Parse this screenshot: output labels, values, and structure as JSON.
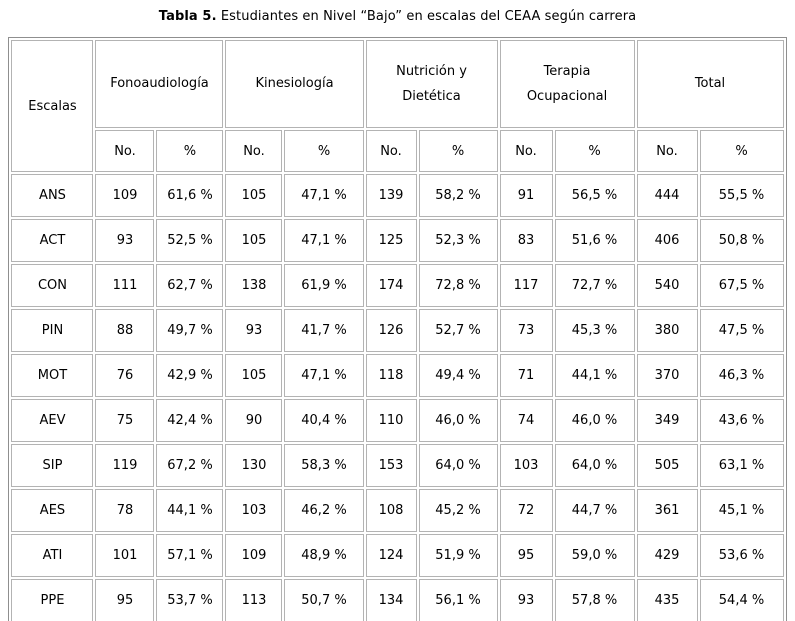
{
  "title": {
    "label": "Tabla 5.",
    "text": " Estudiantes en Nivel “Bajo” en escalas del CEAA según carrera"
  },
  "table": {
    "corner_label": "Escalas",
    "groups": [
      {
        "label": "Fonoaudiología"
      },
      {
        "label": "Kinesiología"
      },
      {
        "label": "Nutrición y Dietética"
      },
      {
        "label": "Terapia Ocupacional"
      },
      {
        "label": "Total"
      }
    ],
    "subheaders": {
      "no": "No.",
      "pct": "%"
    },
    "rows": [
      {
        "scale": "ANS",
        "values": [
          "109",
          "61,6 %",
          "105",
          "47,1 %",
          "139",
          "58,2 %",
          "91",
          "56,5 %",
          "444",
          "55,5 %"
        ]
      },
      {
        "scale": "ACT",
        "values": [
          "93",
          "52,5 %",
          "105",
          "47,1 %",
          "125",
          "52,3 %",
          "83",
          "51,6 %",
          "406",
          "50,8 %"
        ]
      },
      {
        "scale": "CON",
        "values": [
          "111",
          "62,7 %",
          "138",
          "61,9 %",
          "174",
          "72,8 %",
          "117",
          "72,7 %",
          "540",
          "67,5 %"
        ]
      },
      {
        "scale": "PIN",
        "values": [
          "88",
          "49,7 %",
          "93",
          "41,7 %",
          "126",
          "52,7 %",
          "73",
          "45,3 %",
          "380",
          "47,5 %"
        ]
      },
      {
        "scale": "MOT",
        "values": [
          "76",
          "42,9 %",
          "105",
          "47,1 %",
          "118",
          "49,4 %",
          "71",
          "44,1 %",
          "370",
          "46,3 %"
        ]
      },
      {
        "scale": "AEV",
        "values": [
          "75",
          "42,4 %",
          "90",
          "40,4 %",
          "110",
          "46,0 %",
          "74",
          "46,0 %",
          "349",
          "43,6 %"
        ]
      },
      {
        "scale": "SIP",
        "values": [
          "119",
          "67,2 %",
          "130",
          "58,3 %",
          "153",
          "64,0 %",
          "103",
          "64,0 %",
          "505",
          "63,1 %"
        ]
      },
      {
        "scale": "AES",
        "values": [
          "78",
          "44,1 %",
          "103",
          "46,2 %",
          "108",
          "45,2 %",
          "72",
          "44,7 %",
          "361",
          "45,1 %"
        ]
      },
      {
        "scale": "ATI",
        "values": [
          "101",
          "57,1 %",
          "109",
          "48,9 %",
          "124",
          "51,9 %",
          "95",
          "59,0 %",
          "429",
          "53,6 %"
        ]
      },
      {
        "scale": "PPE",
        "values": [
          "95",
          "53,7 %",
          "113",
          "50,7 %",
          "134",
          "56,1 %",
          "93",
          "57,8 %",
          "435",
          "54,4 %"
        ]
      }
    ]
  },
  "colors": {
    "text": "#000000",
    "table_outer_border": "#8f8f8f",
    "cell_border": "#b3b3b3",
    "background": "#ffffff"
  }
}
